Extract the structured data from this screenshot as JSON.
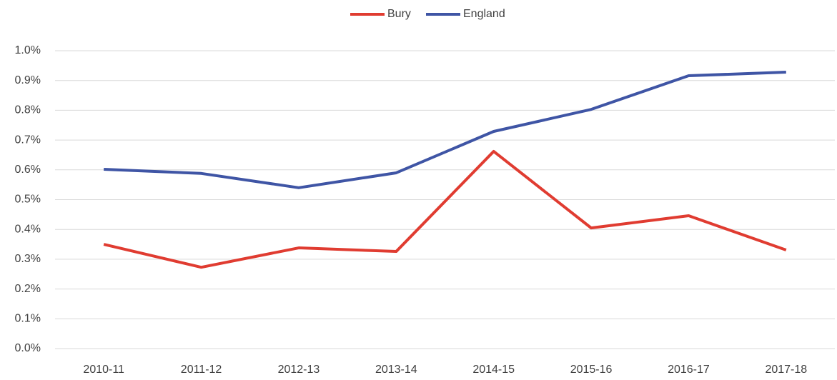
{
  "chart_data": {
    "type": "line",
    "categories": [
      "2010-11",
      "2011-12",
      "2012-13",
      "2013-14",
      "2014-15",
      "2015-16",
      "2016-17",
      "2017-18"
    ],
    "series": [
      {
        "name": "Bury",
        "color": "#e03c31",
        "values": [
          0.35,
          0.273,
          0.338,
          0.326,
          0.662,
          0.405,
          0.446,
          0.331
        ]
      },
      {
        "name": "England",
        "color": "#3f55a5",
        "values": [
          0.602,
          0.588,
          0.54,
          0.59,
          0.729,
          0.803,
          0.916,
          0.928
        ]
      }
    ],
    "ylim": [
      0,
      1.0
    ],
    "yticks": [
      {
        "value": 0,
        "label": "0.0%"
      },
      {
        "value": 0.1,
        "label": "0.1%"
      },
      {
        "value": 0.2,
        "label": "0.2%"
      },
      {
        "value": 0.3,
        "label": "0.3%"
      },
      {
        "value": 0.4,
        "label": "0.4%"
      },
      {
        "value": 0.5,
        "label": "0.5%"
      },
      {
        "value": 0.6,
        "label": "0.6%"
      },
      {
        "value": 0.7,
        "label": "0.7%"
      },
      {
        "value": 0.8,
        "label": "0.8%"
      },
      {
        "value": 0.9,
        "label": "0.9%"
      },
      {
        "value": 1.0,
        "label": "1.0%"
      }
    ],
    "grid": true,
    "legend": "top"
  }
}
